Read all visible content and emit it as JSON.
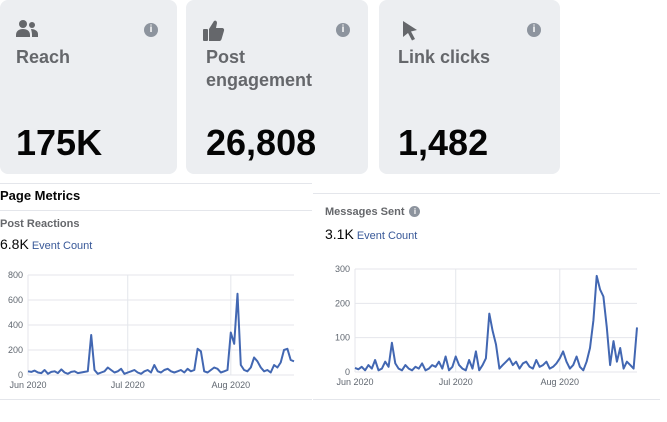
{
  "cards": [
    {
      "title": "Reach",
      "value": "175K",
      "icon": "people-icon"
    },
    {
      "title": "Post engagement",
      "value": "26,808",
      "icon": "thumbs-up-icon"
    },
    {
      "title": "Link clicks",
      "value": "1,482",
      "icon": "cursor-icon"
    }
  ],
  "info_glyph": "i",
  "left_panel": {
    "section_title": "Page Metrics",
    "metric_name": "Post Reactions",
    "metric_value": "6.8K",
    "metric_unit": "Event Count"
  },
  "right_panel": {
    "metric_name": "Messages Sent",
    "metric_value": "3.1K",
    "metric_unit": "Event Count"
  },
  "chart_data": [
    {
      "type": "line",
      "y_ticks": [
        "800",
        "600",
        "400",
        "200",
        "0"
      ],
      "ylim": [
        0,
        800
      ],
      "x_tick_labels": [
        "Jun 2020",
        "Jul 2020",
        "Aug 2020"
      ],
      "x_tick_index": [
        0,
        30,
        61
      ],
      "series": [
        {
          "values": [
            30,
            25,
            35,
            20,
            15,
            40,
            10,
            25,
            30,
            15,
            45,
            20,
            10,
            25,
            30,
            15,
            20,
            25,
            30,
            320,
            40,
            10,
            20,
            30,
            60,
            40,
            20,
            30,
            50,
            10,
            20,
            30,
            40,
            20,
            10,
            30,
            40,
            20,
            80,
            30,
            20,
            40,
            50,
            30,
            20,
            30,
            40,
            20,
            50,
            30,
            40,
            210,
            190,
            30,
            20,
            40,
            60,
            50,
            20,
            30,
            40,
            340,
            250,
            650,
            80,
            40,
            30,
            60,
            140,
            110,
            60,
            30,
            40,
            20,
            80,
            60,
            100,
            200,
            210,
            120,
            110
          ]
        }
      ],
      "color": "#4267b2"
    },
    {
      "type": "line",
      "y_ticks": [
        "300",
        "200",
        "100",
        "0"
      ],
      "ylim": [
        0,
        300
      ],
      "x_tick_labels": [
        "Jun 2020",
        "Jul 2020",
        "Aug 2020"
      ],
      "x_tick_index": [
        0,
        30,
        61
      ],
      "series": [
        {
          "values": [
            12,
            8,
            15,
            5,
            20,
            10,
            35,
            5,
            10,
            30,
            15,
            85,
            25,
            10,
            5,
            20,
            10,
            5,
            15,
            10,
            25,
            5,
            10,
            20,
            15,
            30,
            10,
            45,
            5,
            15,
            45,
            20,
            10,
            5,
            35,
            10,
            60,
            5,
            20,
            40,
            170,
            120,
            80,
            10,
            20,
            30,
            40,
            20,
            30,
            10,
            25,
            30,
            15,
            10,
            35,
            15,
            20,
            30,
            10,
            15,
            25,
            40,
            60,
            30,
            10,
            20,
            45,
            15,
            5,
            30,
            70,
            150,
            280,
            240,
            220,
            130,
            20,
            90,
            30,
            70,
            10,
            30,
            20,
            10,
            130
          ]
        }
      ],
      "color": "#4267b2"
    }
  ]
}
